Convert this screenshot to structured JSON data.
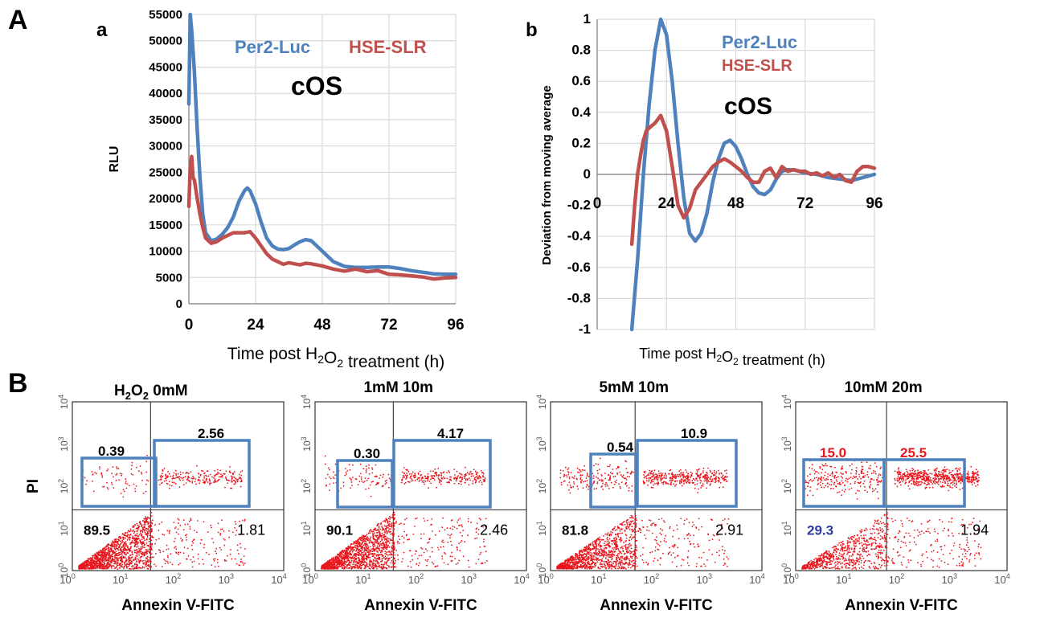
{
  "panel_letters": {
    "A": "A",
    "a": "a",
    "b": "b",
    "B": "B"
  },
  "colors": {
    "per2": "#4f81bd",
    "hse": "#c0504d",
    "dots": "#e8161d",
    "gate": "#4f81bd",
    "red_label": "#e8161d",
    "blue_label": "#2e3d9e"
  },
  "chart_data": [
    {
      "id": "a",
      "type": "line",
      "title": "",
      "annotation": "cOS",
      "xlabel": "Time post H2O2 treatment (h)",
      "ylabel": "RLU",
      "xlim": [
        0,
        96
      ],
      "ylim": [
        0,
        55000
      ],
      "xticks": [
        "0",
        "24",
        "48",
        "72",
        "96"
      ],
      "yticks": [
        "0",
        "5000",
        "10000",
        "15000",
        "20000",
        "25000",
        "30000",
        "35000",
        "40000",
        "45000",
        "50000",
        "55000"
      ],
      "grid": true,
      "legend": "top-right",
      "series": [
        {
          "name": "Per2-Luc",
          "color": "#4f81bd",
          "x": [
            0,
            0.5,
            1,
            2,
            3,
            4,
            5,
            6,
            8,
            10,
            12,
            14,
            16,
            18,
            20,
            21,
            22,
            24,
            26,
            28,
            30,
            32,
            34,
            36,
            38,
            40,
            42,
            44,
            46,
            48,
            50,
            52,
            56,
            60,
            64,
            68,
            72,
            76,
            80,
            84,
            88,
            92,
            96
          ],
          "y": [
            38000,
            55000,
            52000,
            44000,
            33000,
            24000,
            17000,
            13500,
            12000,
            12300,
            13200,
            14500,
            16500,
            19500,
            21500,
            22000,
            21500,
            19000,
            15500,
            12500,
            11000,
            10400,
            10300,
            10500,
            11200,
            11800,
            12200,
            12000,
            11000,
            10000,
            9000,
            8000,
            7100,
            6900,
            6900,
            7000,
            7000,
            6700,
            6300,
            6000,
            5700,
            5600,
            5600
          ]
        },
        {
          "name": "HSE-SLR",
          "color": "#c0504d",
          "x": [
            0,
            0.5,
            1,
            1.5,
            2,
            3,
            4,
            5,
            6,
            8,
            10,
            12,
            14,
            16,
            18,
            20,
            22,
            24,
            26,
            28,
            30,
            32,
            34,
            36,
            38,
            40,
            42,
            44,
            48,
            52,
            56,
            60,
            64,
            68,
            72,
            76,
            80,
            84,
            88,
            92,
            96
          ],
          "y": [
            18500,
            26000,
            28000,
            24000,
            23500,
            20000,
            17000,
            14500,
            12500,
            11500,
            11800,
            12500,
            13000,
            13500,
            13500,
            13500,
            13700,
            12500,
            11000,
            9500,
            8500,
            8000,
            7500,
            7800,
            7600,
            7400,
            7700,
            7600,
            7200,
            6600,
            6200,
            6600,
            6100,
            6300,
            5600,
            5500,
            5300,
            5100,
            4700,
            4900,
            5000
          ]
        }
      ]
    },
    {
      "id": "b",
      "type": "line",
      "title": "",
      "annotation": "cOS",
      "xlabel": "Time post H2O2 treatment (h)",
      "ylabel": "Deviation from moving average",
      "xlim": [
        0,
        96
      ],
      "ylim": [
        -1,
        1
      ],
      "xticks": [
        "0",
        "24",
        "48",
        "72",
        "96"
      ],
      "yticks": [
        "-1",
        "-0.8",
        "-0.6",
        "-0.4",
        "-0.2",
        "0",
        "0.2",
        "0.4",
        "0.6",
        "0.8",
        "1"
      ],
      "grid": true,
      "legend": "top-left",
      "series": [
        {
          "name": "Per2-Luc",
          "color": "#4f81bd",
          "x": [
            12,
            14,
            16,
            18,
            20,
            22,
            24,
            26,
            28,
            30,
            32,
            34,
            36,
            38,
            40,
            42,
            44,
            46,
            48,
            50,
            52,
            54,
            56,
            58,
            60,
            62,
            64,
            66,
            68,
            72,
            76,
            80,
            84,
            88,
            92,
            96
          ],
          "y": [
            -1,
            -0.55,
            0,
            0.45,
            0.8,
            1,
            0.9,
            0.6,
            0.2,
            -0.15,
            -0.38,
            -0.43,
            -0.38,
            -0.25,
            -0.05,
            0.1,
            0.2,
            0.22,
            0.18,
            0.1,
            0,
            -0.08,
            -0.12,
            -0.13,
            -0.1,
            -0.03,
            0.02,
            0.03,
            0.03,
            0.01,
            0,
            -0.02,
            -0.03,
            -0.04,
            -0.02,
            0
          ]
        },
        {
          "name": "HSE-SLR",
          "color": "#c0504d",
          "x": [
            12,
            13,
            14,
            15,
            16,
            17,
            18,
            20,
            22,
            24,
            26,
            28,
            30,
            32,
            34,
            36,
            38,
            40,
            42,
            44,
            46,
            48,
            50,
            52,
            54,
            56,
            58,
            60,
            62,
            64,
            66,
            68,
            70,
            72,
            74,
            76,
            78,
            80,
            82,
            84,
            86,
            88,
            90,
            92,
            94,
            96
          ],
          "y": [
            -0.45,
            -0.2,
            0,
            0.12,
            0.22,
            0.28,
            0.3,
            0.33,
            0.38,
            0.28,
            0.05,
            -0.2,
            -0.28,
            -0.22,
            -0.1,
            -0.05,
            0,
            0.05,
            0.08,
            0.1,
            0.08,
            0.05,
            0.02,
            -0.02,
            -0.05,
            -0.05,
            0.02,
            0.04,
            -0.02,
            0.05,
            0.02,
            0.03,
            0.02,
            0.02,
            0,
            0.01,
            -0.01,
            0.01,
            -0.02,
            0,
            -0.04,
            -0.05,
            0.02,
            0.05,
            0.05,
            0.04
          ]
        }
      ]
    },
    {
      "id": "flow",
      "type": "scatter",
      "xlabel": "Annexin V-FITC",
      "ylabel": "PI",
      "x_scale": "log",
      "y_scale": "log",
      "xlim": [
        1,
        10000
      ],
      "ylim": [
        1,
        10000
      ],
      "tick_base": "10",
      "tick_exponents": [
        "0",
        "1",
        "2",
        "3",
        "4"
      ],
      "panels": [
        {
          "title_parts": [
            "H",
            "2",
            "O",
            "2",
            " 0mM"
          ],
          "quadrants": {
            "upper_left": "0.39",
            "upper_right": "2.56",
            "lower_left": "89.5",
            "lower_right": "1.81"
          }
        },
        {
          "title": "1mM  10m",
          "quadrants": {
            "upper_left": "0.30",
            "upper_right": "4.17",
            "lower_left": "90.1",
            "lower_right": "2.46"
          }
        },
        {
          "title": "5mM  10m",
          "quadrants": {
            "upper_left": "0.54",
            "upper_right": "10.9",
            "lower_left": "81.8",
            "lower_right": "2.91"
          }
        },
        {
          "title": "10mM  20m",
          "quadrants": {
            "upper_left": "15.0",
            "upper_right": "25.5",
            "lower_left": "29.3",
            "lower_right": "1.94"
          }
        }
      ]
    }
  ]
}
